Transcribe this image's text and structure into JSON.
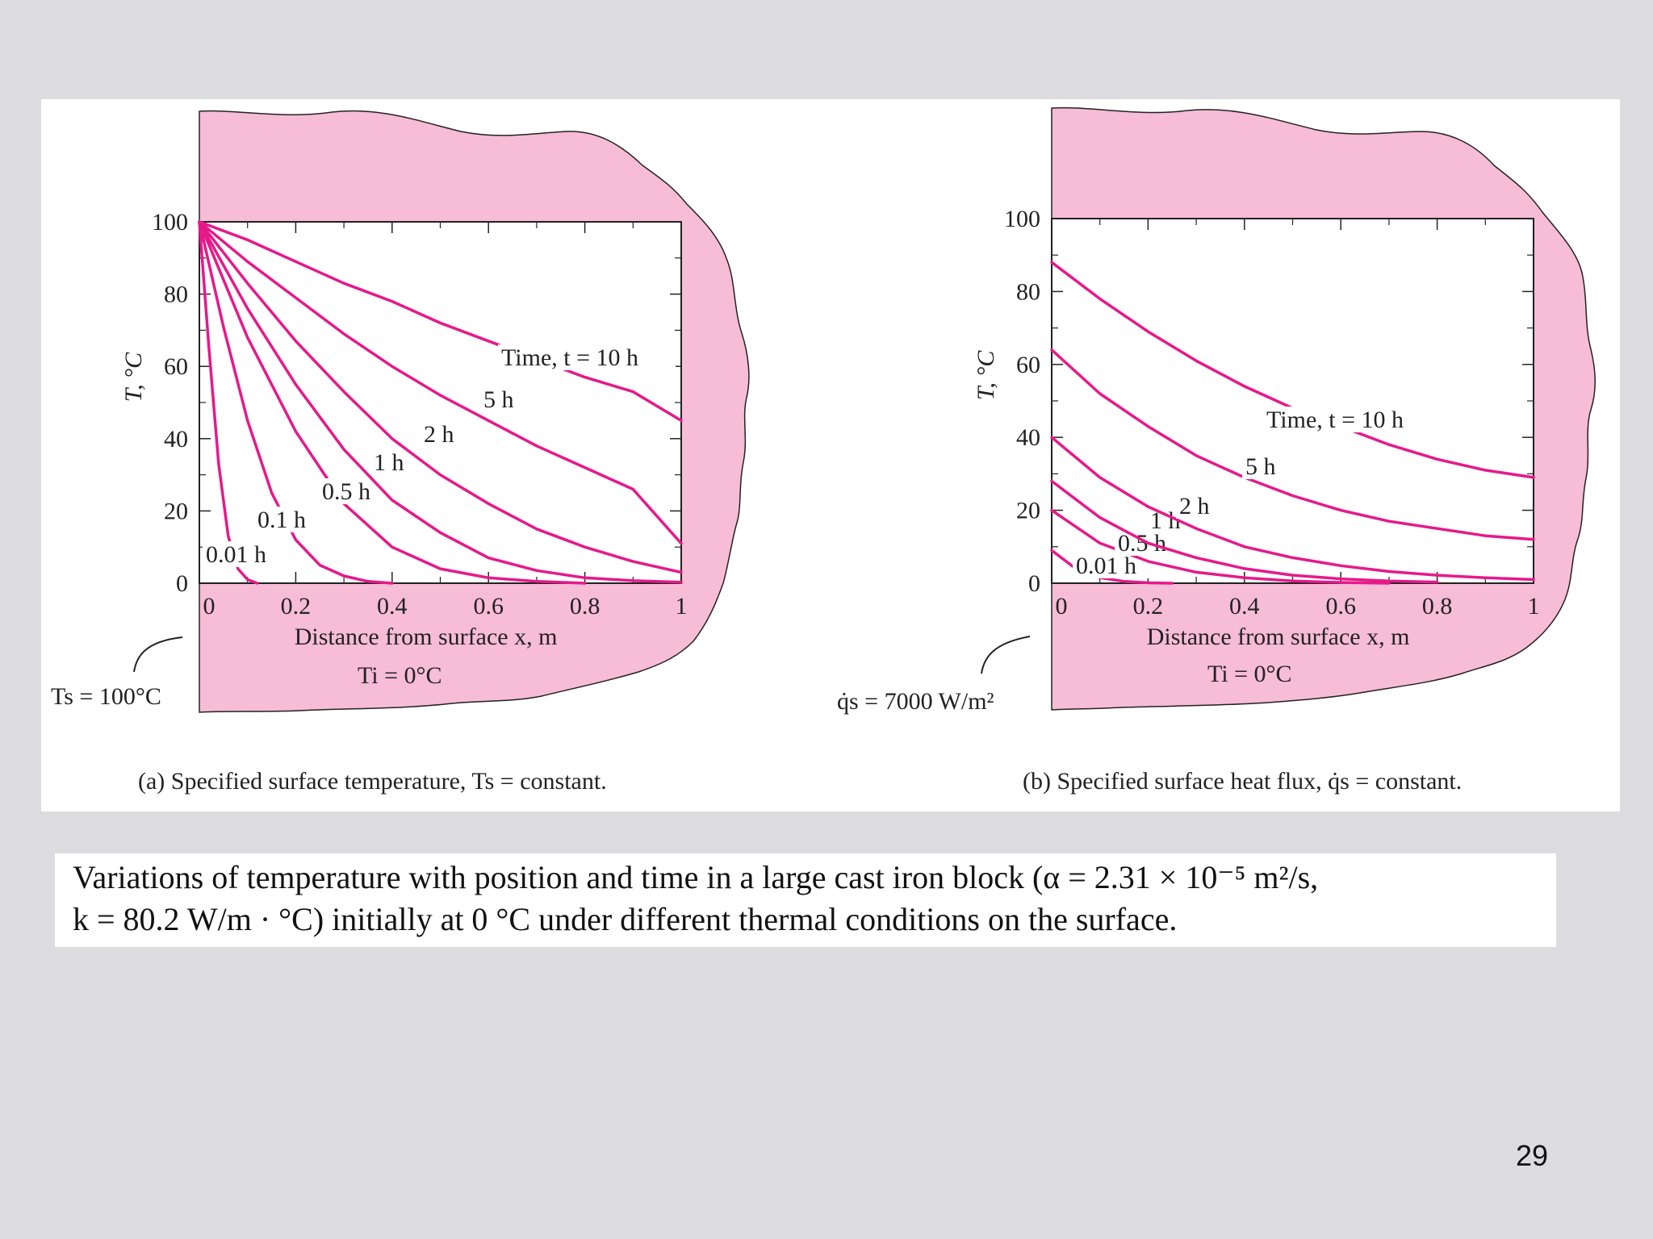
{
  "colors": {
    "block_fill": "#f7bcd6",
    "curve": "#e6198a",
    "axes": "#222222",
    "slide_bg": "#dcdcde"
  },
  "chart_data": [
    {
      "type": "line",
      "panel_caption": "(a) Specified surface temperature, Ts = constant.",
      "xlabel": "Distance from surface x, m",
      "ylabel": "T, °C",
      "xlim": [
        0,
        1
      ],
      "ylim": [
        0,
        100
      ],
      "x_ticks": [
        "0",
        "0.2",
        "0.4",
        "0.6",
        "0.8",
        "1"
      ],
      "y_ticks": [
        "0",
        "20",
        "40",
        "60",
        "80",
        "100"
      ],
      "condition_label": "Ts = 100°C",
      "initial_label": "Ti = 0°C",
      "series": [
        {
          "name": "0.01 h",
          "x": [
            0,
            0.02,
            0.04,
            0.06,
            0.08,
            0.1,
            0.12
          ],
          "y": [
            100,
            65,
            33,
            13,
            4,
            1,
            0
          ]
        },
        {
          "name": "0.1 h",
          "x": [
            0,
            0.05,
            0.1,
            0.15,
            0.2,
            0.25,
            0.3,
            0.35,
            0.4
          ],
          "y": [
            100,
            71,
            45,
            25,
            12,
            5,
            2,
            0.5,
            0
          ]
        },
        {
          "name": "0.5 h",
          "x": [
            0,
            0.1,
            0.2,
            0.3,
            0.4,
            0.5,
            0.6,
            0.7,
            0.8
          ],
          "y": [
            100,
            68,
            42,
            22,
            10,
            4,
            1.5,
            0.5,
            0
          ]
        },
        {
          "name": "1 h",
          "x": [
            0,
            0.1,
            0.2,
            0.3,
            0.4,
            0.5,
            0.6,
            0.7,
            0.8,
            0.9,
            1.0
          ],
          "y": [
            100,
            76,
            55,
            37,
            23,
            14,
            7,
            3.5,
            1.5,
            0.7,
            0.3
          ]
        },
        {
          "name": "2 h",
          "x": [
            0,
            0.1,
            0.2,
            0.3,
            0.4,
            0.5,
            0.6,
            0.7,
            0.8,
            0.9,
            1.0
          ],
          "y": [
            100,
            83,
            67,
            53,
            40,
            30,
            22,
            15,
            10,
            6,
            3
          ]
        },
        {
          "name": "5 h",
          "x": [
            0,
            0.1,
            0.2,
            0.3,
            0.4,
            0.5,
            0.6,
            0.7,
            0.8,
            0.9,
            1.0
          ],
          "y": [
            100,
            89,
            79,
            69,
            60,
            52,
            45,
            38,
            32,
            26,
            11
          ]
        },
        {
          "name": "Time, t = 10 h",
          "x": [
            0,
            0.1,
            0.2,
            0.3,
            0.4,
            0.5,
            0.6,
            0.7,
            0.8,
            0.9,
            1.0
          ],
          "y": [
            100,
            95,
            89,
            83,
            78,
            72,
            67,
            62,
            57,
            53,
            45
          ]
        }
      ]
    },
    {
      "type": "line",
      "panel_caption": "(b) Specified surface heat flux, q̇s = constant.",
      "xlabel": "Distance from surface x, m",
      "ylabel": "T, °C",
      "xlim": [
        0,
        1
      ],
      "ylim": [
        0,
        100
      ],
      "x_ticks": [
        "0",
        "0.2",
        "0.4",
        "0.6",
        "0.8",
        "1"
      ],
      "y_ticks": [
        "0",
        "20",
        "40",
        "60",
        "80",
        "100"
      ],
      "condition_label": "q̇s = 7000 W/m²",
      "initial_label": "Ti = 0°C",
      "series": [
        {
          "name": "0.01 h",
          "x": [
            0,
            0.05,
            0.1,
            0.15,
            0.2,
            0.25
          ],
          "y": [
            9,
            4,
            1.5,
            0.5,
            0.1,
            0
          ]
        },
        {
          "name": "0.5 h",
          "x": [
            0,
            0.1,
            0.2,
            0.3,
            0.4,
            0.5,
            0.6,
            0.7
          ],
          "y": [
            20,
            11,
            6,
            3,
            1.5,
            0.6,
            0.2,
            0
          ]
        },
        {
          "name": "1 h",
          "x": [
            0,
            0.1,
            0.2,
            0.3,
            0.4,
            0.5,
            0.6,
            0.7,
            0.8
          ],
          "y": [
            28,
            18,
            11,
            7,
            4,
            2.2,
            1.2,
            0.6,
            0.3
          ]
        },
        {
          "name": "2 h",
          "x": [
            0,
            0.1,
            0.2,
            0.3,
            0.4,
            0.5,
            0.6,
            0.7,
            0.8,
            0.9,
            1.0
          ],
          "y": [
            40,
            29,
            21,
            15,
            10,
            7,
            4.8,
            3.2,
            2.2,
            1.5,
            1
          ]
        },
        {
          "name": "5 h",
          "x": [
            0,
            0.1,
            0.2,
            0.3,
            0.4,
            0.5,
            0.6,
            0.7,
            0.8,
            0.9,
            1.0
          ],
          "y": [
            64,
            52,
            43,
            35,
            29,
            24,
            20,
            17,
            15,
            13,
            12
          ]
        },
        {
          "name": "Time, t = 10 h",
          "x": [
            0,
            0.1,
            0.2,
            0.3,
            0.4,
            0.5,
            0.6,
            0.7,
            0.8,
            0.9,
            1.0
          ],
          "y": [
            88,
            78,
            69,
            61,
            54,
            48,
            43,
            38,
            34,
            31,
            29
          ]
        }
      ]
    }
  ],
  "caption": {
    "line1": "Variations of temperature with position and time in a large cast iron block (α = 2.31 × 10⁻⁵ m²/s,",
    "line2": "k = 80.2 W/m · °C) initially at 0 °C under different thermal conditions on the surface."
  },
  "page_number": "29"
}
